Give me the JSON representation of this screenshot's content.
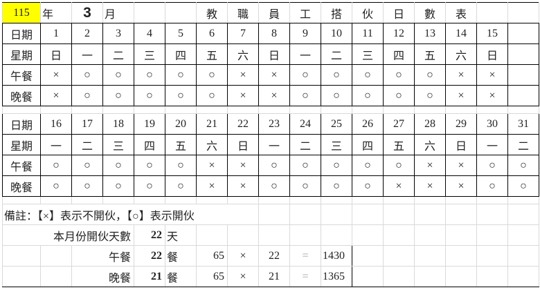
{
  "title": {
    "year": "115",
    "year_unit": "年",
    "month": "3",
    "month_unit": "月",
    "heading_chars": [
      "教",
      "職",
      "員",
      "工",
      "搭",
      "伙",
      "日",
      "數",
      "表"
    ]
  },
  "labels": {
    "date": "日期",
    "weekday": "星期",
    "lunch": "午餐",
    "dinner": "晚餐"
  },
  "blocks": [
    {
      "dates": [
        "1",
        "2",
        "3",
        "4",
        "5",
        "6",
        "7",
        "8",
        "9",
        "10",
        "11",
        "12",
        "13",
        "14",
        "15"
      ],
      "weekdays": [
        "日",
        "一",
        "二",
        "三",
        "四",
        "五",
        "六",
        "日",
        "一",
        "二",
        "三",
        "四",
        "五",
        "六",
        "日"
      ],
      "lunch": [
        "×",
        "○",
        "○",
        "○",
        "○",
        "○",
        "×",
        "×",
        "○",
        "○",
        "○",
        "○",
        "○",
        "×",
        "×"
      ],
      "dinner": [
        "×",
        "○",
        "○",
        "○",
        "○",
        "○",
        "×",
        "×",
        "○",
        "○",
        "○",
        "○",
        "○",
        "×",
        "×"
      ]
    },
    {
      "dates": [
        "16",
        "17",
        "18",
        "19",
        "20",
        "21",
        "22",
        "23",
        "24",
        "25",
        "26",
        "27",
        "28",
        "29",
        "30",
        "31"
      ],
      "weekdays": [
        "一",
        "二",
        "三",
        "四",
        "五",
        "六",
        "日",
        "一",
        "二",
        "三",
        "四",
        "五",
        "六",
        "日",
        "一",
        "二"
      ],
      "lunch": [
        "○",
        "○",
        "○",
        "○",
        "○",
        "×",
        "×",
        "○",
        "○",
        "○",
        "○",
        "○",
        "×",
        "×",
        "○",
        "○"
      ],
      "dinner": [
        "○",
        "○",
        "○",
        "○",
        "○",
        "×",
        "×",
        "○",
        "○",
        "○",
        "○",
        "×",
        "×",
        "×",
        "○",
        "○"
      ]
    }
  ],
  "note": "備註：【×】表示不開伙，【○】表示開伙",
  "summary": {
    "days_label": "本月份開伙天數",
    "days_value": "22",
    "days_unit": "天",
    "rows": [
      {
        "label": "午餐",
        "count": "22",
        "unit": "餐",
        "price": "65",
        "times": "×",
        "qty": "22",
        "equals": "=",
        "total": "1430"
      },
      {
        "label": "晚餐",
        "count": "21",
        "unit": "餐",
        "price": "65",
        "times": "×",
        "qty": "21",
        "equals": "=",
        "total": "1365"
      }
    ]
  }
}
